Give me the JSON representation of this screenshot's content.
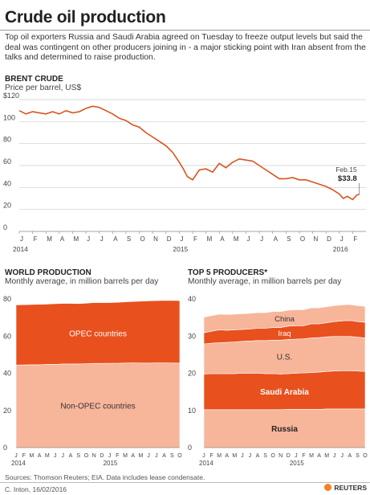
{
  "header": {
    "title": "Crude oil production",
    "intro": "Top oil exporters Russia and Saudi Arabia agreed on Tuesday to freeze output levels but said the deal was contingent on other producers joining in - a major sticking point with Iran absent from the talks and determined to raise production."
  },
  "colors": {
    "line": "#d9531e",
    "opec": "#e8501e",
    "nonopec": "#f7b59a",
    "russia": "#f7b59a",
    "saudi": "#e8501e",
    "us": "#f7b59a",
    "iraq": "#e8501e",
    "china": "#f7b59a"
  },
  "chart_data": [
    {
      "type": "line",
      "title": "BRENT CRUDE",
      "ylabel": "Price per barrel, US$",
      "ylim": [
        0,
        120
      ],
      "yticks": [
        "$120",
        "100",
        "80",
        "60",
        "40",
        "20",
        "0"
      ],
      "month_labels": [
        "J",
        "F",
        "M",
        "A",
        "M",
        "J",
        "J",
        "A",
        "S",
        "O",
        "N",
        "D",
        "J",
        "F",
        "M",
        "A",
        "M",
        "J",
        "J",
        "A",
        "S",
        "O",
        "N",
        "D",
        "J",
        "F"
      ],
      "year_labels": [
        "2014",
        "2015",
        "2016"
      ],
      "annotation": {
        "date": "Feb.15",
        "value": "$33.8"
      },
      "grid": true,
      "series": [
        {
          "x": [
            0,
            0.5,
            1,
            1.5,
            2,
            2.5,
            3,
            3.5,
            4,
            4.5,
            5,
            5.5,
            6,
            6.5,
            7,
            7.5,
            8,
            8.5,
            9,
            9.5,
            10,
            10.5,
            11,
            11.5,
            12,
            12.3,
            12.6,
            13,
            13.5,
            14,
            14.5,
            15,
            15.5,
            16,
            16.5,
            17,
            17.5,
            18,
            18.5,
            19,
            19.5,
            20,
            20.5,
            21,
            21.5,
            22,
            22.5,
            23,
            23.5,
            24,
            24.3,
            24.6,
            25,
            25.3,
            25.5
          ],
          "y": [
            110,
            107,
            109,
            108,
            107,
            109,
            107,
            110,
            108,
            109,
            112,
            114,
            113,
            110,
            107,
            103,
            101,
            97,
            95,
            90,
            86,
            82,
            78,
            72,
            63,
            57,
            50,
            47,
            56,
            57,
            54,
            62,
            58,
            63,
            66,
            65,
            64,
            60,
            56,
            52,
            48,
            48,
            49,
            47,
            47,
            45,
            43,
            41,
            38,
            34,
            30,
            32,
            29,
            33,
            33.8
          ]
        }
      ]
    },
    {
      "type": "area",
      "title": "WORLD PRODUCTION",
      "ylabel": "Monthly average, in million barrels per day",
      "ylim": [
        0,
        80
      ],
      "yticks": [
        "80",
        "60",
        "40",
        "20",
        "0"
      ],
      "month_labels": [
        "J",
        "F",
        "M",
        "A",
        "M",
        "J",
        "J",
        "A",
        "S",
        "O",
        "N",
        "D",
        "J",
        "F",
        "M",
        "A",
        "M",
        "J",
        "J",
        "A",
        "S",
        "O"
      ],
      "year_labels": [
        "2014",
        "2015"
      ],
      "series": [
        {
          "name": "Non-OPEC countries",
          "values": [
            44.4,
            44.5,
            44.6,
            44.6,
            44.8,
            44.8,
            45.0,
            45.0,
            45.0,
            45.2,
            45.3,
            45.3,
            45.4,
            45.4,
            45.5,
            45.6,
            45.5,
            45.5,
            45.6,
            45.6,
            45.5,
            45.5
          ]
        },
        {
          "name": "OPEC countries",
          "values": [
            32.4,
            32.4,
            32.4,
            32.5,
            32.4,
            32.6,
            32.6,
            32.6,
            32.5,
            32.5,
            32.7,
            32.7,
            32.6,
            32.8,
            32.9,
            33.0,
            33.3,
            33.4,
            33.5,
            33.6,
            33.7,
            33.6
          ]
        }
      ]
    },
    {
      "type": "area",
      "title": "TOP 5 PRODUCERS*",
      "ylabel": "Monthly average, in million barrels per day",
      "ylim": [
        0,
        40
      ],
      "yticks": [
        "40",
        "30",
        "20",
        "10",
        "0"
      ],
      "month_labels": [
        "J",
        "F",
        "M",
        "A",
        "M",
        "J",
        "J",
        "A",
        "S",
        "O",
        "N",
        "D",
        "J",
        "F",
        "M",
        "A",
        "M",
        "J",
        "J",
        "A",
        "S",
        "O"
      ],
      "year_labels": [
        "2014",
        "2015"
      ],
      "series": [
        {
          "name": "Russia",
          "values": [
            10.2,
            10.2,
            10.2,
            10.2,
            10.2,
            10.2,
            10.2,
            10.2,
            10.2,
            10.2,
            10.2,
            10.3,
            10.3,
            10.3,
            10.3,
            10.3,
            10.4,
            10.4,
            10.4,
            10.4,
            10.4,
            10.4
          ]
        },
        {
          "name": "Saudi Arabia",
          "values": [
            9.6,
            9.7,
            9.7,
            9.7,
            9.7,
            9.8,
            9.8,
            9.8,
            9.7,
            9.7,
            9.6,
            9.6,
            9.7,
            9.8,
            9.9,
            10.0,
            10.1,
            10.2,
            10.3,
            10.3,
            10.2,
            10.1
          ]
        },
        {
          "name": "U.S.",
          "values": [
            8.1,
            8.2,
            8.3,
            8.4,
            8.5,
            8.6,
            8.7,
            8.8,
            8.9,
            9.0,
            9.1,
            9.2,
            9.2,
            9.2,
            9.3,
            9.3,
            9.3,
            9.3,
            9.2,
            9.2,
            9.1,
            9.0
          ]
        },
        {
          "name": "Iraq",
          "values": [
            3.0,
            3.2,
            3.5,
            3.3,
            3.3,
            3.2,
            3.2,
            3.3,
            3.3,
            3.4,
            3.4,
            3.6,
            3.6,
            3.5,
            3.8,
            3.7,
            3.8,
            4.0,
            4.2,
            4.3,
            4.2,
            4.2
          ]
        },
        {
          "name": "China",
          "values": [
            4.2,
            4.2,
            4.2,
            4.2,
            4.2,
            4.2,
            4.2,
            4.2,
            4.2,
            4.3,
            4.3,
            4.3,
            4.3,
            4.3,
            4.3,
            4.3,
            4.3,
            4.3,
            4.3,
            4.3,
            4.3,
            4.3
          ]
        }
      ]
    }
  ],
  "footer": {
    "sources": "Sources: Thomson Reuters; EIA. Data includes lease condensate.",
    "credit": "C. Inton, 16/02/2016",
    "brand": "REUTERS"
  }
}
